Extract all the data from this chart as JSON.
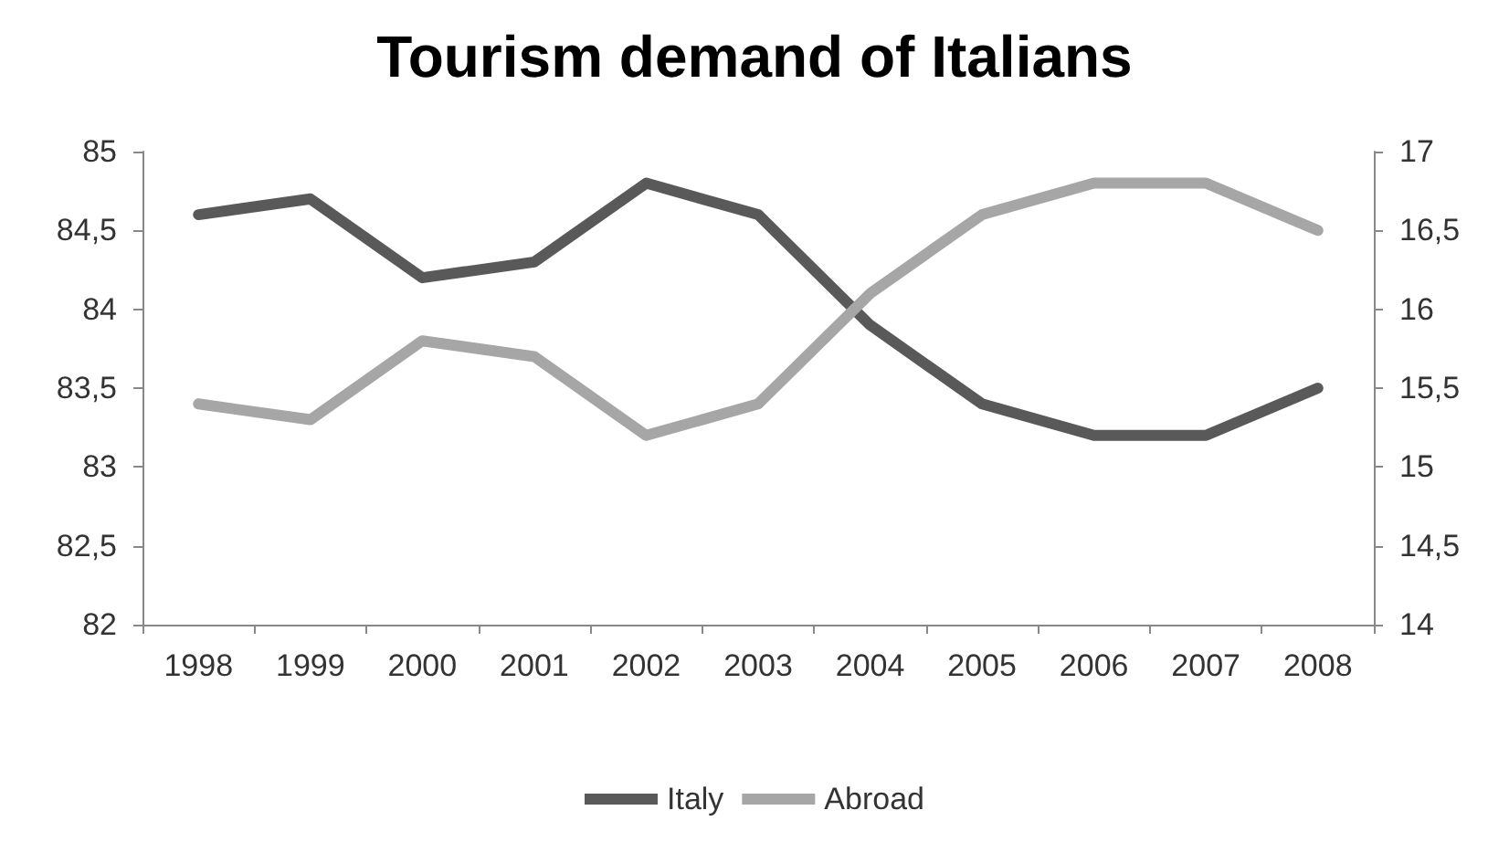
{
  "chart_data": {
    "type": "line",
    "title": "Tourism demand of Italians",
    "categories": [
      "1998",
      "1999",
      "2000",
      "2001",
      "2002",
      "2003",
      "2004",
      "2005",
      "2006",
      "2007",
      "2008"
    ],
    "series": [
      {
        "name": "Italy",
        "color": "#595959",
        "values": [
          84.6,
          84.7,
          84.2,
          84.3,
          84.8,
          84.6,
          83.9,
          83.4,
          83.2,
          83.2,
          83.5
        ]
      },
      {
        "name": "Abroad",
        "color": "#a6a6a6",
        "axis": "y2",
        "values": [
          15.4,
          15.3,
          15.8,
          15.7,
          15.2,
          15.4,
          16.1,
          16.6,
          16.8,
          16.8,
          16.5
        ]
      }
    ],
    "ylim": [
      82,
      85
    ],
    "yticks": [
      82,
      {
        "value": 82.5,
        "label": "82,5"
      },
      83,
      {
        "value": 83.5,
        "label": "83,5"
      },
      84,
      {
        "value": 84.5,
        "label": "84,5"
      },
      85
    ],
    "y2lim": [
      14,
      17
    ],
    "y2ticks": [
      14,
      {
        "value": 14.5,
        "label": "14,5"
      },
      15,
      {
        "value": 15.5,
        "label": "15,5"
      },
      16,
      {
        "value": 16.5,
        "label": "16,5"
      },
      17
    ],
    "grid": false,
    "legend": "bottom",
    "marker": "none",
    "line_style": "solid"
  }
}
